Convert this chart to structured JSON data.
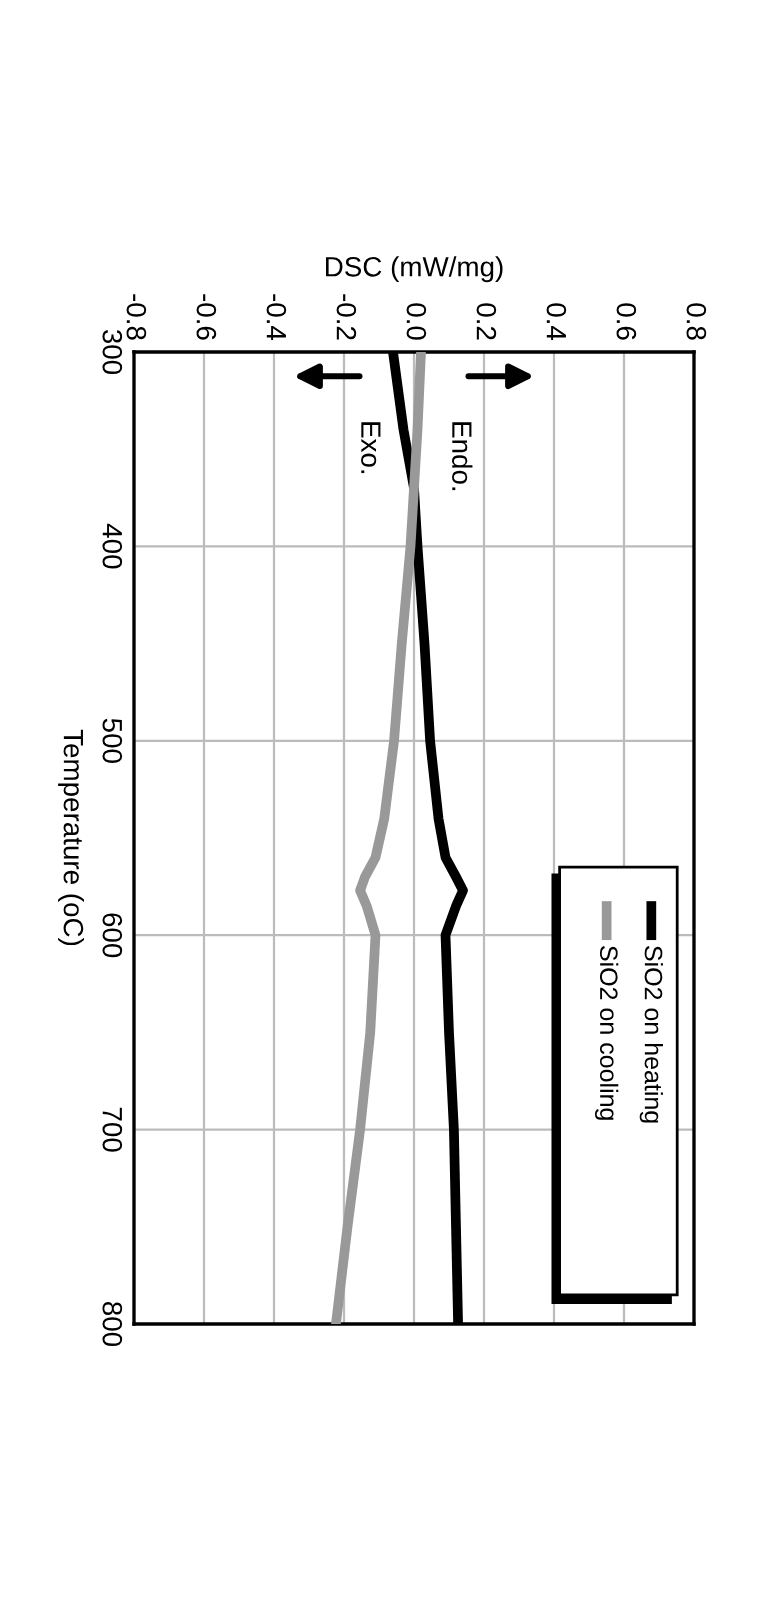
{
  "chart_data": {
    "type": "line",
    "xlabel": "DSC (mW/mg)",
    "ylabel": "Temperature (oC)",
    "series": [
      {
        "name": "SiO2 on heating",
        "color": "#000000",
        "x": [
          -0.06,
          -0.03,
          0.0,
          0.01,
          0.03,
          0.046,
          0.07,
          0.09,
          0.12,
          0.14,
          0.12,
          0.09,
          0.1,
          0.114,
          0.12,
          0.126
        ],
        "values": [
          300,
          340,
          370,
          400,
          450,
          500,
          540,
          560,
          570,
          577,
          585,
          600,
          650,
          700,
          750,
          800
        ]
      },
      {
        "name": "SiO2 on cooling",
        "color": "#999999",
        "x": [
          0.02,
          0.01,
          0.0,
          -0.01,
          -0.035,
          -0.057,
          -0.085,
          -0.11,
          -0.14,
          -0.154,
          -0.135,
          -0.11,
          -0.125,
          -0.154,
          -0.19,
          -0.223
        ],
        "values": [
          300,
          340,
          370,
          400,
          450,
          500,
          540,
          560,
          570,
          577,
          585,
          600,
          650,
          700,
          750,
          800
        ]
      }
    ],
    "xlim": [
      -0.8,
      0.8
    ],
    "xticks": [
      -0.8,
      -0.6,
      -0.4,
      -0.2,
      {
        "value": 0,
        "label": "0.0"
      },
      0.2,
      0.4,
      0.6,
      0.8
    ],
    "ylim": [
      800,
      300
    ],
    "yticks": [
      300,
      400,
      500,
      600,
      700,
      800
    ],
    "annotations": [
      "Endo.",
      "Exo."
    ],
    "grid": true,
    "legend": "bottom right",
    "line_style": "solid",
    "marker": "none"
  }
}
